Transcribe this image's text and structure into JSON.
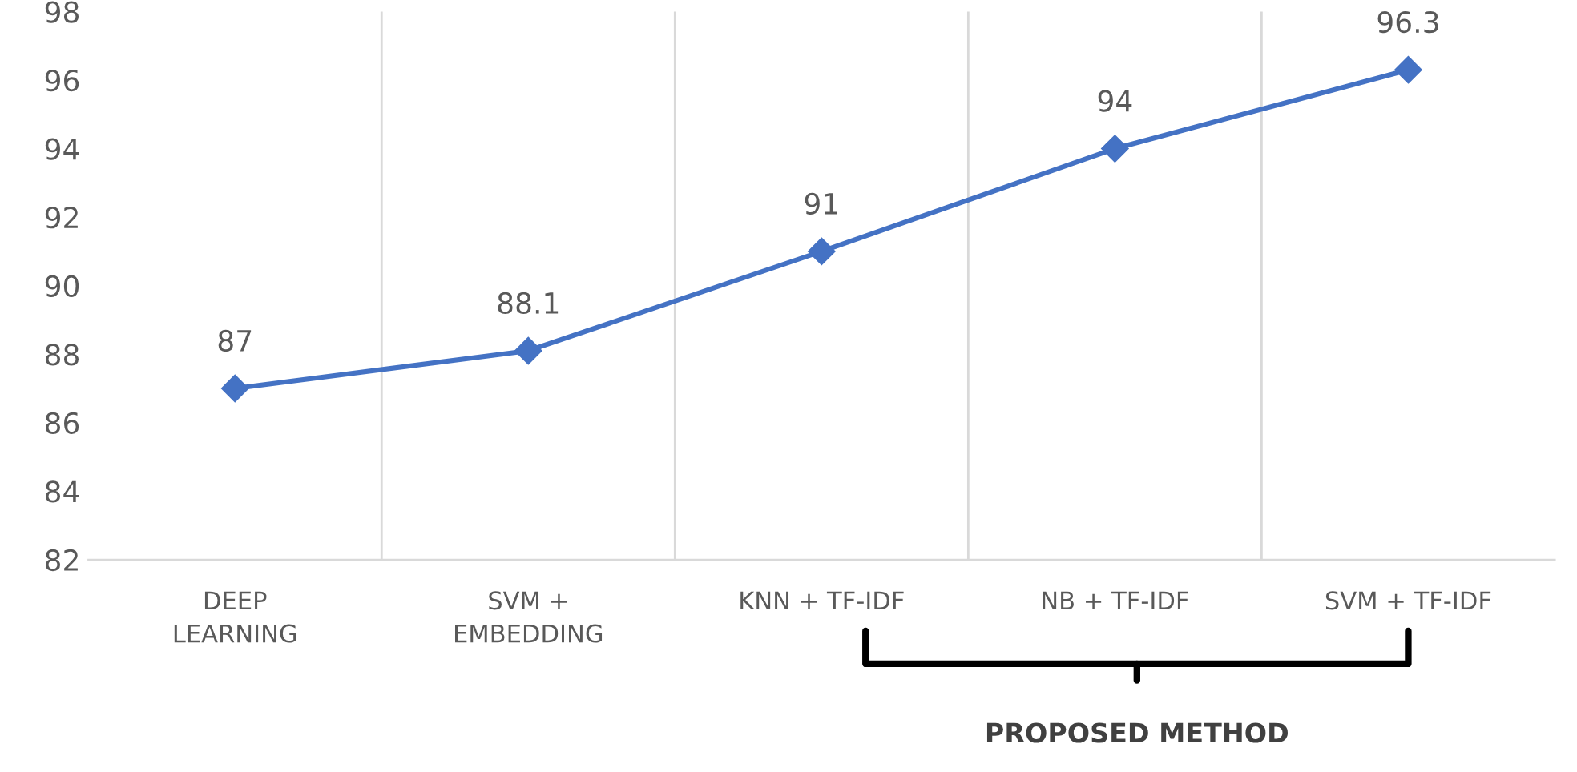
{
  "chart_data": {
    "type": "line",
    "categories": [
      "DEEP\nLEARNING",
      "SVM +\nEMBEDDING",
      "KNN + TF-IDF",
      "NB + TF-IDF",
      "SVM + TF-IDF"
    ],
    "series": [
      {
        "color": "#4472c4",
        "values": [
          87,
          88.1,
          91,
          94,
          96.3
        ]
      }
    ],
    "ylim": [
      82,
      98
    ],
    "yticks": [
      82,
      84,
      86,
      88,
      90,
      92,
      94,
      96,
      98
    ],
    "grid": "x",
    "marker": "diamond",
    "line_style": "solid",
    "data_labels": true,
    "annotations": [
      "PROPOSED METHOD"
    ]
  }
}
